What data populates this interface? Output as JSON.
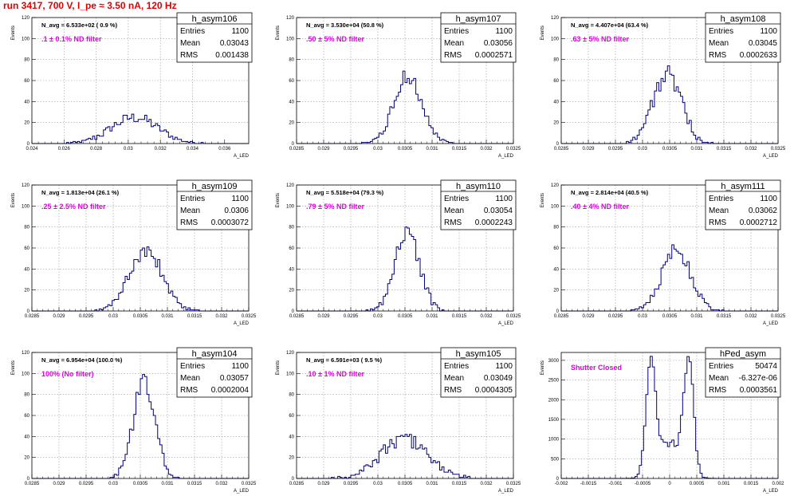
{
  "header": {
    "title": "run 3417,   700 V, I_pe ≈ 3.50 nA, 120 Hz"
  },
  "colors": {
    "title": "#e00000",
    "hist": "#00007a",
    "note": "#e000e0",
    "grid": "#9a9a9a"
  },
  "chart_data": [
    {
      "type": "histogram",
      "name": "h_asym106",
      "entries": "1100",
      "mean": "0.03043",
      "rms": "0.001438",
      "navg": "N_avg = 6.533e+02 ( 0.9 %)",
      "note": ".1 ± 0.1% ND filter",
      "xlim": [
        0.024,
        0.0375
      ],
      "ylim": [
        0,
        120
      ],
      "xticks": [
        0.024,
        0.026,
        0.028,
        0.03,
        0.032,
        0.034,
        0.036
      ],
      "xtick_labels": [
        "0.024",
        "0.026",
        "0.028",
        "0.03",
        "0.032",
        "0.034",
        "0.036"
      ],
      "yticks": [
        0,
        20,
        40,
        60,
        80,
        100,
        120
      ],
      "ylabel": "Events",
      "xlabel": "A_LED",
      "peaks": [
        {
          "mu": 0.0304,
          "sigma": 0.00144,
          "amp": 25
        }
      ]
    },
    {
      "type": "histogram",
      "name": "h_asym107",
      "entries": "1100",
      "mean": "0.03056",
      "rms": "0.0002571",
      "navg": "N_avg = 3.530e+04 (50.8 %)",
      "note": ".50 ± 5% ND filter",
      "xlim": [
        0.0285,
        0.0325
      ],
      "ylim": [
        0,
        120
      ],
      "xticks": [
        0.0285,
        0.029,
        0.0295,
        0.03,
        0.0305,
        0.031,
        0.0315,
        0.032,
        0.0325
      ],
      "xtick_labels": [
        "0.0285",
        "0.029",
        "0.0295",
        "0.03",
        "0.0305",
        "0.031",
        "0.0315",
        "0.032",
        "0.0325"
      ],
      "yticks": [
        0,
        20,
        40,
        60,
        80,
        100,
        120
      ],
      "ylabel": "Events",
      "xlabel": "A_LED",
      "peaks": [
        {
          "mu": 0.03056,
          "sigma": 0.000257,
          "amp": 65
        }
      ]
    },
    {
      "type": "histogram",
      "name": "h_asym108",
      "entries": "1100",
      "mean": "0.03045",
      "rms": "0.0002633",
      "navg": "N_avg = 4.407e+04 (63.4 %)",
      "note": ".63 ± 5% ND filter",
      "xlim": [
        0.0285,
        0.0325
      ],
      "ylim": [
        0,
        120
      ],
      "xticks": [
        0.0285,
        0.029,
        0.0295,
        0.03,
        0.0305,
        0.031,
        0.0315,
        0.032,
        0.0325
      ],
      "xtick_labels": [
        "0.0285",
        "0.029",
        "0.0295",
        "0.03",
        "0.0305",
        "0.031",
        "0.0315",
        "0.032",
        "0.0325"
      ],
      "yticks": [
        0,
        20,
        40,
        60,
        80,
        100,
        120
      ],
      "ylabel": "Events",
      "xlabel": "A_LED",
      "peaks": [
        {
          "mu": 0.03045,
          "sigma": 0.000263,
          "amp": 66
        }
      ]
    },
    {
      "type": "histogram",
      "name": "h_asym109",
      "entries": "1100",
      "mean": "0.0306",
      "rms": "0.0003072",
      "navg": "N_avg = 1.813e+04 (26.1 %)",
      "note": ".25 ± 2.5% ND filter",
      "xlim": [
        0.0285,
        0.0325
      ],
      "ylim": [
        0,
        120
      ],
      "xticks": [
        0.0285,
        0.029,
        0.0295,
        0.03,
        0.0305,
        0.031,
        0.0315,
        0.032,
        0.0325
      ],
      "xtick_labels": [
        "0.0285",
        "0.029",
        "0.0295",
        "0.03",
        "0.0305",
        "0.031",
        "0.0315",
        "0.032",
        "0.0325"
      ],
      "yticks": [
        0,
        20,
        40,
        60,
        80,
        100,
        120
      ],
      "ylabel": "Events",
      "xlabel": "A_LED",
      "peaks": [
        {
          "mu": 0.0306,
          "sigma": 0.000307,
          "amp": 57
        }
      ]
    },
    {
      "type": "histogram",
      "name": "h_asym110",
      "entries": "1100",
      "mean": "0.03054",
      "rms": "0.0002243",
      "navg": "N_avg = 5.518e+04 (79.3 %)",
      "note": ".79 ± 5% ND filter",
      "xlim": [
        0.0285,
        0.0325
      ],
      "ylim": [
        0,
        120
      ],
      "xticks": [
        0.0285,
        0.029,
        0.0295,
        0.03,
        0.0305,
        0.031,
        0.0315,
        0.032,
        0.0325
      ],
      "xtick_labels": [
        "0.0285",
        "0.029",
        "0.0295",
        "0.03",
        "0.0305",
        "0.031",
        "0.0315",
        "0.032",
        "0.0325"
      ],
      "yticks": [
        0,
        20,
        40,
        60,
        80,
        100,
        120
      ],
      "ylabel": "Events",
      "xlabel": "A_LED",
      "peaks": [
        {
          "mu": 0.03054,
          "sigma": 0.000224,
          "amp": 76
        }
      ]
    },
    {
      "type": "histogram",
      "name": "h_asym111",
      "entries": "1100",
      "mean": "0.03062",
      "rms": "0.0002712",
      "navg": "N_avg = 2.814e+04 (40.5 %)",
      "note": ".40 ± 4% ND filter",
      "xlim": [
        0.0285,
        0.0325
      ],
      "ylim": [
        0,
        120
      ],
      "xticks": [
        0.0285,
        0.029,
        0.0295,
        0.03,
        0.0305,
        0.031,
        0.0315,
        0.032,
        0.0325
      ],
      "xtick_labels": [
        "0.0285",
        "0.029",
        "0.0295",
        "0.03",
        "0.0305",
        "0.031",
        "0.0315",
        "0.032",
        "0.0325"
      ],
      "yticks": [
        0,
        20,
        40,
        60,
        80,
        100,
        120
      ],
      "ylabel": "Events",
      "xlabel": "A_LED",
      "peaks": [
        {
          "mu": 0.03062,
          "sigma": 0.000271,
          "amp": 57
        }
      ]
    },
    {
      "type": "histogram",
      "name": "h_asym104",
      "entries": "1100",
      "mean": "0.03057",
      "rms": "0.0002004",
      "navg": "N_avg = 6.954e+04 (100.0 %)",
      "note": "100% (No filter)",
      "xlim": [
        0.0285,
        0.0325
      ],
      "ylim": [
        0,
        120
      ],
      "xticks": [
        0.0285,
        0.029,
        0.0295,
        0.03,
        0.0305,
        0.031,
        0.0315,
        0.032,
        0.0325
      ],
      "xtick_labels": [
        "0.0285",
        "0.029",
        "0.0295",
        "0.03",
        "0.0305",
        "0.031",
        "0.0315",
        "0.032",
        "0.0325"
      ],
      "yticks": [
        0,
        20,
        40,
        60,
        80,
        100,
        120
      ],
      "ylabel": "Events",
      "xlabel": "A_LED",
      "peaks": [
        {
          "mu": 0.03057,
          "sigma": 0.0002,
          "amp": 92
        }
      ]
    },
    {
      "type": "histogram",
      "name": "h_asym105",
      "entries": "1100",
      "mean": "0.03049",
      "rms": "0.0004305",
      "navg": "N_avg = 6.591e+03 ( 9.5 %)",
      "note": ".10 ± 1% ND filter",
      "xlim": [
        0.0285,
        0.0325
      ],
      "ylim": [
        0,
        120
      ],
      "xticks": [
        0.0285,
        0.029,
        0.0295,
        0.03,
        0.0305,
        0.031,
        0.0315,
        0.032,
        0.0325
      ],
      "xtick_labels": [
        "0.0285",
        "0.029",
        "0.0295",
        "0.03",
        "0.0305",
        "0.031",
        "0.0315",
        "0.032",
        "0.0325"
      ],
      "yticks": [
        0,
        20,
        40,
        60,
        80,
        100,
        120
      ],
      "ylabel": "Events",
      "xlabel": "A_LED",
      "peaks": [
        {
          "mu": 0.03049,
          "sigma": 0.00043,
          "amp": 38
        }
      ]
    },
    {
      "type": "histogram",
      "name": "hPed_asym",
      "entries": "50474",
      "mean": "-6.327e-06",
      "rms": "0.0003561",
      "navg": "",
      "note": "Shutter Closed",
      "xlim": [
        -0.002,
        0.002
      ],
      "ylim": [
        0,
        3200
      ],
      "xticks": [
        -0.002,
        -0.0015,
        -0.001,
        -0.0005,
        0,
        0.0005,
        0.001,
        0.0015,
        0.002
      ],
      "xtick_labels": [
        "-0.002",
        "-0.0015",
        "-0.001",
        "-0.0005",
        "0",
        "0.0005",
        "0.001",
        "0.0015",
        "0.002"
      ],
      "yticks": [
        0,
        500,
        1000,
        1500,
        2000,
        2500,
        3000
      ],
      "ylabel": "Events",
      "xlabel": "A_LED",
      "peaks": [
        {
          "mu": -0.00035,
          "sigma": 9e-05,
          "amp": 2750
        },
        {
          "mu": 0.00035,
          "sigma": 9e-05,
          "amp": 2850
        },
        {
          "mu": 0,
          "sigma": 0.00022,
          "amp": 900
        }
      ]
    }
  ]
}
